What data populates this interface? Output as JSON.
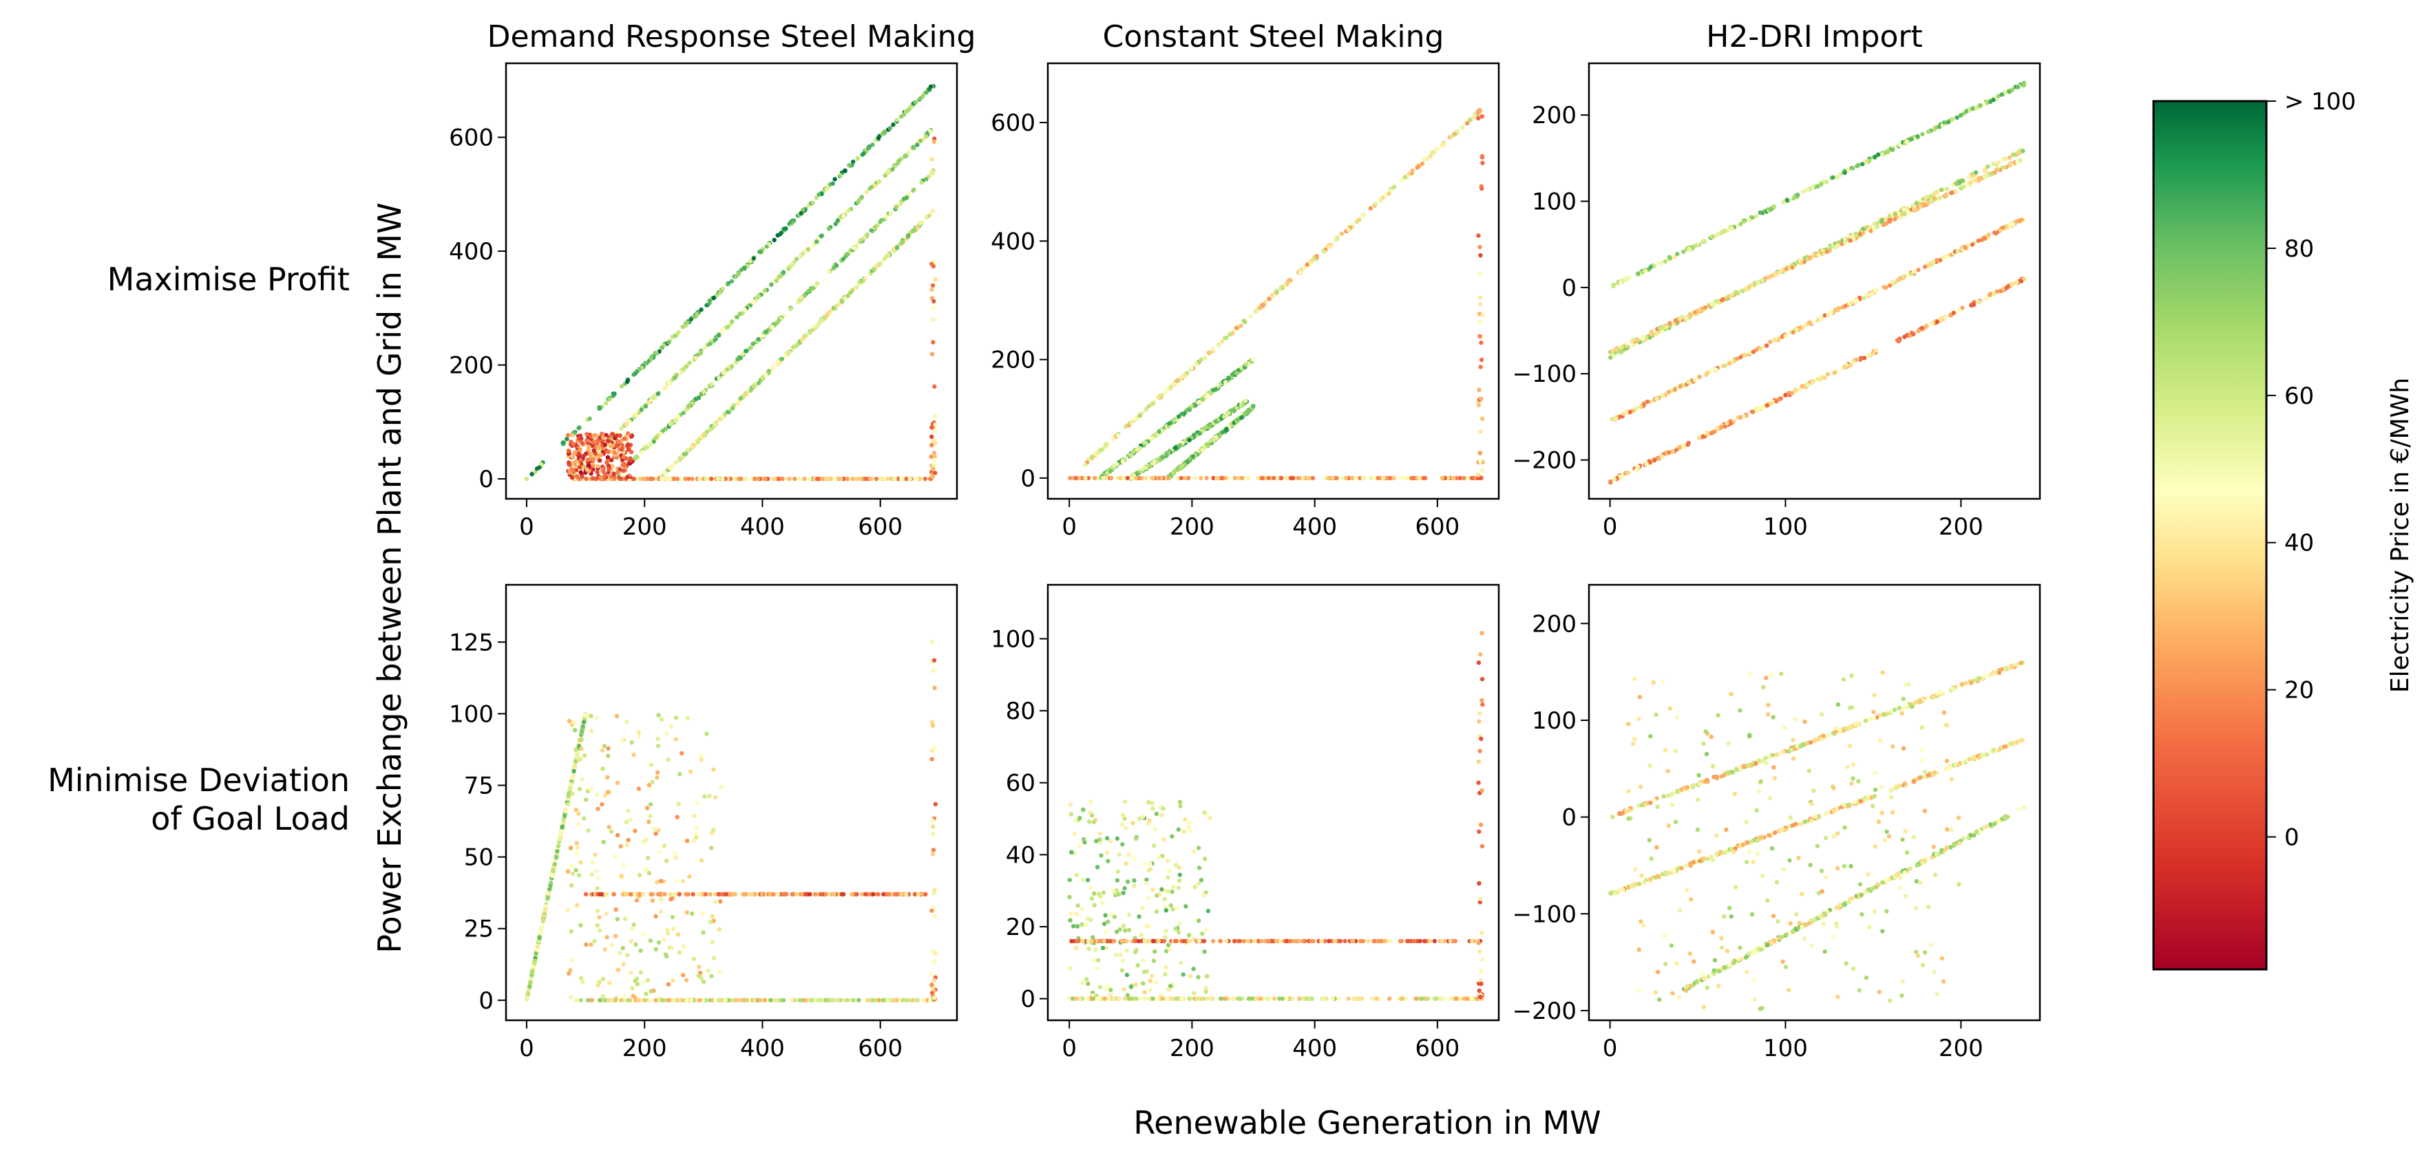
{
  "figure": {
    "xlabel": "Renewable Generation in MW",
    "ylabel": "Power Exchange between Plant and Grid in MW",
    "row_labels": [
      [
        "Maximise Profit"
      ],
      [
        "Minimise Deviation",
        "of Goal Load"
      ]
    ]
  },
  "colorbar": {
    "label": "Electricity Price in €/MWh",
    "range": [
      -18,
      100
    ],
    "ticks": [
      {
        "value": 0,
        "label": "0"
      },
      {
        "value": 20,
        "label": "20"
      },
      {
        "value": 40,
        "label": "40"
      },
      {
        "value": 60,
        "label": "60"
      },
      {
        "value": 80,
        "label": "80"
      },
      {
        "value": 100,
        "label": "> 100"
      }
    ],
    "colormap": "RdYlGn",
    "colors": [
      "#a50026",
      "#f46d43",
      "#fdae61",
      "#ffffbf",
      "#a6d96a",
      "#1a9850",
      "#006837"
    ]
  },
  "chart_data": [
    {
      "type": "scatter",
      "row": 0,
      "col": 0,
      "title": "Demand Response Steel Making",
      "xlim": [
        -35,
        730
      ],
      "ylim": [
        -35,
        730
      ],
      "xticks": [
        0,
        200,
        400,
        600
      ],
      "yticks": [
        0,
        200,
        400,
        600
      ],
      "series": [
        {
          "kind": "line",
          "x": [
            0,
            690
          ],
          "y": [
            0,
            692
          ],
          "price": 78
        },
        {
          "kind": "line",
          "x": [
            72,
            690
          ],
          "y": [
            0,
            615
          ],
          "price": 62
        },
        {
          "kind": "line",
          "x": [
            148,
            690
          ],
          "y": [
            0,
            540
          ],
          "price": 65
        },
        {
          "kind": "line",
          "x": [
            225,
            690
          ],
          "y": [
            0,
            470
          ],
          "price": 58
        },
        {
          "kind": "hline",
          "x": [
            80,
            690
          ],
          "y": 0,
          "price": 30
        },
        {
          "kind": "cluster",
          "x": [
            70,
            180
          ],
          "y": [
            0,
            80
          ],
          "price": 10
        },
        {
          "kind": "vline",
          "x": 690,
          "y": [
            0,
            620
          ],
          "price": 25
        }
      ]
    },
    {
      "type": "scatter",
      "row": 0,
      "col": 1,
      "title": "Constant Steel Making",
      "xlim": [
        -35,
        700
      ],
      "ylim": [
        -35,
        700
      ],
      "xticks": [
        0,
        200,
        400,
        600
      ],
      "yticks": [
        0,
        200,
        400,
        600
      ],
      "series": [
        {
          "kind": "line",
          "x": [
            0,
            670
          ],
          "y": [
            0,
            620
          ],
          "price": 45
        },
        {
          "kind": "line",
          "x": [
            50,
            300
          ],
          "y": [
            0,
            200
          ],
          "price": 70
        },
        {
          "kind": "line",
          "x": [
            100,
            290
          ],
          "y": [
            0,
            130
          ],
          "price": 72
        },
        {
          "kind": "line",
          "x": [
            160,
            300
          ],
          "y": [
            0,
            120
          ],
          "price": 68
        },
        {
          "kind": "hline",
          "x": [
            0,
            670
          ],
          "y": 0,
          "price": 28
        },
        {
          "kind": "vline",
          "x": 670,
          "y": [
            0,
            620
          ],
          "price": 25
        }
      ]
    },
    {
      "type": "scatter",
      "row": 0,
      "col": 2,
      "title": "H2-DRI Import",
      "xlim": [
        -12,
        245
      ],
      "ylim": [
        -245,
        260
      ],
      "xticks": [
        0,
        100,
        200
      ],
      "yticks": [
        -200,
        -100,
        0,
        100,
        200
      ],
      "series": [
        {
          "kind": "line",
          "x": [
            0,
            236
          ],
          "y": [
            0,
            236
          ],
          "price": 66
        },
        {
          "kind": "line",
          "x": [
            0,
            236
          ],
          "y": [
            -80,
            160
          ],
          "price": 55
        },
        {
          "kind": "line",
          "x": [
            0,
            236
          ],
          "y": [
            -75,
            150
          ],
          "price": 40
        },
        {
          "kind": "line",
          "x": [
            0,
            236
          ],
          "y": [
            -155,
            80
          ],
          "price": 35
        },
        {
          "kind": "line",
          "x": [
            0,
            236
          ],
          "y": [
            -225,
            10
          ],
          "price": 30
        }
      ]
    },
    {
      "type": "scatter",
      "row": 1,
      "col": 0,
      "title": "",
      "xlim": [
        -35,
        730
      ],
      "ylim": [
        -7,
        145
      ],
      "xticks": [
        0,
        200,
        400,
        600
      ],
      "yticks": [
        0,
        25,
        50,
        75,
        100,
        125
      ],
      "series": [
        {
          "kind": "line",
          "x": [
            0,
            100
          ],
          "y": [
            0,
            100
          ],
          "price": 60
        },
        {
          "kind": "cluster",
          "x": [
            70,
            330
          ],
          "y": [
            0,
            100
          ],
          "price": 45
        },
        {
          "kind": "hline",
          "x": [
            100,
            690
          ],
          "y": 37,
          "price": 20
        },
        {
          "kind": "hline",
          "x": [
            80,
            690
          ],
          "y": 0,
          "price": 50
        },
        {
          "kind": "vline",
          "x": 690,
          "y": [
            0,
            138
          ],
          "price": 30
        }
      ]
    },
    {
      "type": "scatter",
      "row": 1,
      "col": 1,
      "title": "",
      "xlim": [
        -35,
        700
      ],
      "ylim": [
        -6,
        115
      ],
      "xticks": [
        0,
        200,
        400,
        600
      ],
      "yticks": [
        0,
        20,
        40,
        60,
        80,
        100
      ],
      "series": [
        {
          "kind": "cluster",
          "x": [
            0,
            230
          ],
          "y": [
            0,
            55
          ],
          "price": 60
        },
        {
          "kind": "hline",
          "x": [
            0,
            670
          ],
          "y": 16,
          "price": 20
        },
        {
          "kind": "hline",
          "x": [
            0,
            670
          ],
          "y": 0,
          "price": 50
        },
        {
          "kind": "vline",
          "x": 670,
          "y": [
            0,
            110
          ],
          "price": 25
        }
      ]
    },
    {
      "type": "scatter",
      "row": 1,
      "col": 2,
      "title": "",
      "xlim": [
        -12,
        245
      ],
      "ylim": [
        -210,
        240
      ],
      "xticks": [
        0,
        100,
        200
      ],
      "yticks": [
        -200,
        -100,
        0,
        100,
        200
      ],
      "series": [
        {
          "kind": "line",
          "x": [
            0,
            236
          ],
          "y": [
            0,
            160
          ],
          "price": 45
        },
        {
          "kind": "line",
          "x": [
            0,
            236
          ],
          "y": [
            -80,
            80
          ],
          "price": 45
        },
        {
          "kind": "line",
          "x": [
            40,
            236
          ],
          "y": [
            -180,
            10
          ],
          "price": 55
        },
        {
          "kind": "cluster",
          "x": [
            10,
            200
          ],
          "y": [
            -200,
            150
          ],
          "price": 50
        }
      ]
    }
  ]
}
